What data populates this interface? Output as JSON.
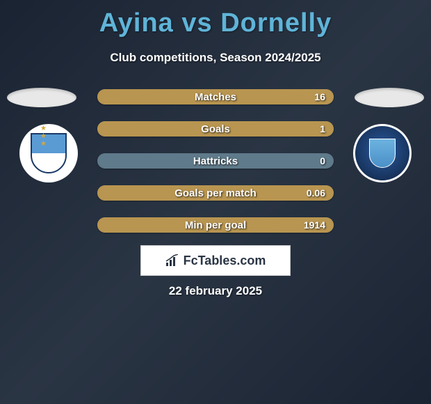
{
  "title": "Ayina vs Dornelly",
  "subtitle": "Club competitions, Season 2024/2025",
  "date": "22 february 2025",
  "logo_text": "FcTables.com",
  "colors": {
    "title": "#5fb4d8",
    "bar_track": "#5f7a8a",
    "bar_fill_right": "#b89550",
    "background_start": "#1a2332",
    "background_end": "#2a3544"
  },
  "bars": [
    {
      "label": "Matches",
      "value": "16",
      "fill_pct": 100
    },
    {
      "label": "Goals",
      "value": "1",
      "fill_pct": 100
    },
    {
      "label": "Hattricks",
      "value": "0",
      "fill_pct": 0
    },
    {
      "label": "Goals per match",
      "value": "0.06",
      "fill_pct": 100
    },
    {
      "label": "Min per goal",
      "value": "1914",
      "fill_pct": 100
    }
  ],
  "crests": {
    "left": {
      "name": "huddersfield-crest"
    },
    "right": {
      "name": "peterborough-crest"
    }
  }
}
